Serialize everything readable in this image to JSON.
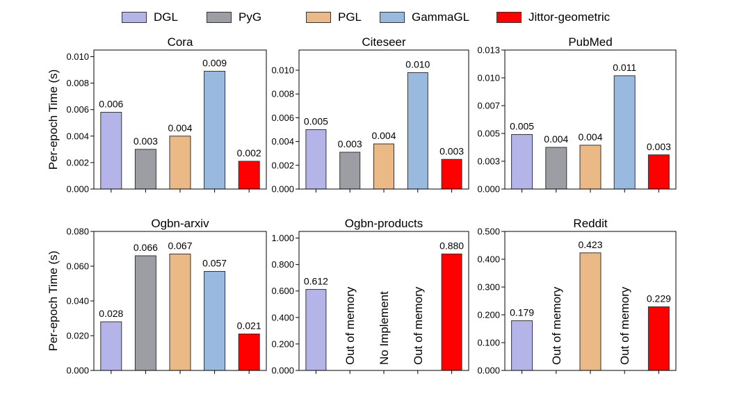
{
  "legend": [
    {
      "name": "DGL",
      "color": "#b4b4e8"
    },
    {
      "name": "PyG",
      "color": "#9d9ea3"
    },
    {
      "name": "PGL",
      "color": "#eab986"
    },
    {
      "name": "GammaGL",
      "color": "#99b9df"
    },
    {
      "name": "Jittor-geometric",
      "color": "#ff0000"
    }
  ],
  "ylabel": "Per-epoch Time (s)",
  "chart_data": [
    {
      "type": "bar",
      "title": "Cora",
      "categories": [
        "DGL",
        "PyG",
        "PGL",
        "GammaGL",
        "Jittor-geometric"
      ],
      "values": [
        0.0058,
        0.003,
        0.004,
        0.0089,
        0.0021
      ],
      "labels": [
        "0.006",
        "0.003",
        "0.004",
        "0.009",
        "0.002"
      ],
      "ylim": [
        0,
        0.0105
      ],
      "yticks": [
        "0.000",
        "0.002",
        "0.004",
        "0.006",
        "0.008",
        "0.010"
      ],
      "ytick_values": [
        0,
        0.002,
        0.004,
        0.006,
        0.008,
        0.01
      ]
    },
    {
      "type": "bar",
      "title": "Citeseer",
      "categories": [
        "DGL",
        "PyG",
        "PGL",
        "GammaGL",
        "Jittor-geometric"
      ],
      "values": [
        0.005,
        0.0031,
        0.0038,
        0.0098,
        0.0025
      ],
      "labels": [
        "0.005",
        "0.003",
        "0.004",
        "0.010",
        "0.003"
      ],
      "ylim": [
        0,
        0.0117
      ],
      "yticks": [
        "0.000",
        "0.002",
        "0.004",
        "0.006",
        "0.008",
        "0.010"
      ],
      "ytick_values": [
        0,
        0.002,
        0.004,
        0.006,
        0.008,
        0.01
      ]
    },
    {
      "type": "bar",
      "title": "PubMed",
      "categories": [
        "DGL",
        "PyG",
        "PGL",
        "GammaGL",
        "Jittor-geometric"
      ],
      "values": [
        0.0051,
        0.0039,
        0.0041,
        0.0106,
        0.0032
      ],
      "labels": [
        "0.005",
        "0.004",
        "0.004",
        "0.011",
        "0.003"
      ],
      "ylim": [
        0,
        0.013
      ],
      "yticks": [
        "0.000",
        "0.003",
        "0.005",
        "0.007",
        "0.010",
        "0.013"
      ],
      "ytick_values": [
        0,
        0.0026,
        0.0052,
        0.0078,
        0.0104,
        0.013
      ]
    },
    {
      "type": "bar",
      "title": "Ogbn-arxiv",
      "categories": [
        "DGL",
        "PyG",
        "PGL",
        "GammaGL",
        "Jittor-geometric"
      ],
      "values": [
        0.028,
        0.066,
        0.067,
        0.057,
        0.021
      ],
      "labels": [
        "0.028",
        "0.066",
        "0.067",
        "0.057",
        "0.021"
      ],
      "ylim": [
        0,
        0.08
      ],
      "yticks": [
        "0.000",
        "0.020",
        "0.040",
        "0.060",
        "0.080"
      ],
      "ytick_values": [
        0,
        0.02,
        0.04,
        0.06,
        0.08
      ]
    },
    {
      "type": "bar",
      "title": "Ogbn-products",
      "categories": [
        "DGL",
        "PyG",
        "PGL",
        "GammaGL",
        "Jittor-geometric"
      ],
      "values": [
        0.612,
        null,
        null,
        null,
        0.88
      ],
      "labels": [
        "0.612",
        "Out of memory",
        "No Implement",
        "Out of memory",
        "0.880"
      ],
      "ylim": [
        0,
        1.05
      ],
      "yticks": [
        "0.000",
        "0.200",
        "0.400",
        "0.600",
        "0.800",
        "1.000"
      ],
      "ytick_values": [
        0,
        0.2,
        0.4,
        0.6,
        0.8,
        1.0
      ]
    },
    {
      "type": "bar",
      "title": "Reddit",
      "categories": [
        "DGL",
        "PyG",
        "PGL",
        "GammaGL",
        "Jittor-geometric"
      ],
      "values": [
        0.179,
        null,
        0.423,
        null,
        0.229
      ],
      "labels": [
        "0.179",
        "Out of memory",
        "0.423",
        "Out of memory",
        "0.229"
      ],
      "ylim": [
        0,
        0.5
      ],
      "yticks": [
        "0.000",
        "0.100",
        "0.200",
        "0.300",
        "0.400",
        "0.500"
      ],
      "ytick_values": [
        0,
        0.1,
        0.2,
        0.3,
        0.4,
        0.5
      ]
    }
  ]
}
